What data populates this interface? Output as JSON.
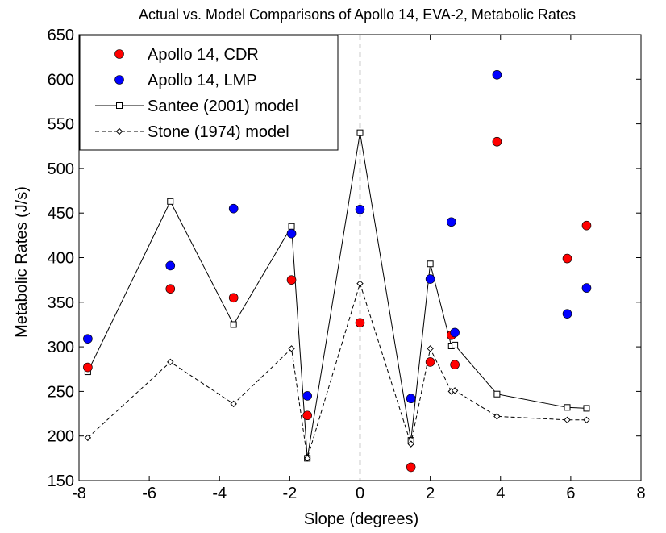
{
  "chart_data": {
    "type": "scatter",
    "title": "Actual vs. Model Comparisons of Apollo 14, EVA-2, Metabolic Rates",
    "xlabel": "Slope (degrees)",
    "ylabel": "Metabolic Rates (J/s)",
    "xlim": [
      -8,
      8
    ],
    "ylim": [
      150,
      650
    ],
    "xticks": [
      -8,
      -6,
      -4,
      -2,
      0,
      2,
      4,
      6,
      8
    ],
    "yticks": [
      150,
      200,
      250,
      300,
      350,
      400,
      450,
      500,
      550,
      600,
      650
    ],
    "grid": false,
    "legend_position": "top-left",
    "reference_line_x": 0,
    "series": [
      {
        "name": "Apollo 14, CDR",
        "kind": "marker",
        "color": "#ff0000",
        "points": [
          [
            -7.75,
            277
          ],
          [
            -5.4,
            365
          ],
          [
            -3.6,
            355
          ],
          [
            -1.95,
            375
          ],
          [
            -1.5,
            223
          ],
          [
            0,
            327
          ],
          [
            1.45,
            165
          ],
          [
            2.0,
            283
          ],
          [
            2.6,
            313
          ],
          [
            2.7,
            280
          ],
          [
            3.9,
            530
          ],
          [
            5.9,
            399
          ],
          [
            6.45,
            436
          ]
        ]
      },
      {
        "name": "Apollo 14, LMP",
        "kind": "marker",
        "color": "#0000ff",
        "points": [
          [
            -7.75,
            309
          ],
          [
            -5.4,
            391
          ],
          [
            -3.6,
            455
          ],
          [
            -1.95,
            427
          ],
          [
            -1.5,
            245
          ],
          [
            0,
            454
          ],
          [
            1.45,
            242
          ],
          [
            2.0,
            376
          ],
          [
            2.7,
            316
          ],
          [
            2.6,
            440
          ],
          [
            3.9,
            605
          ],
          [
            5.9,
            337
          ],
          [
            6.45,
            366
          ]
        ]
      },
      {
        "name": "Santee (2001) model",
        "kind": "solid-square",
        "color": "#000000",
        "points": [
          [
            -7.75,
            272
          ],
          [
            -5.4,
            463
          ],
          [
            -3.6,
            325
          ],
          [
            -1.95,
            435
          ],
          [
            -1.5,
            175
          ],
          [
            0,
            540
          ],
          [
            1.45,
            195
          ],
          [
            2.0,
            393
          ],
          [
            2.6,
            301
          ],
          [
            2.7,
            302
          ],
          [
            3.9,
            247
          ],
          [
            5.9,
            232
          ],
          [
            6.45,
            231
          ]
        ]
      },
      {
        "name": "Stone (1974) model",
        "kind": "dashed-diamond",
        "color": "#000000",
        "points": [
          [
            -7.75,
            198
          ],
          [
            -5.4,
            283
          ],
          [
            -3.6,
            236
          ],
          [
            -1.95,
            298
          ],
          [
            -1.5,
            175
          ],
          [
            0,
            371
          ],
          [
            1.45,
            191
          ],
          [
            2.0,
            298
          ],
          [
            2.6,
            250
          ],
          [
            2.7,
            251
          ],
          [
            3.9,
            222
          ],
          [
            5.9,
            218
          ],
          [
            6.45,
            218
          ]
        ]
      }
    ]
  }
}
